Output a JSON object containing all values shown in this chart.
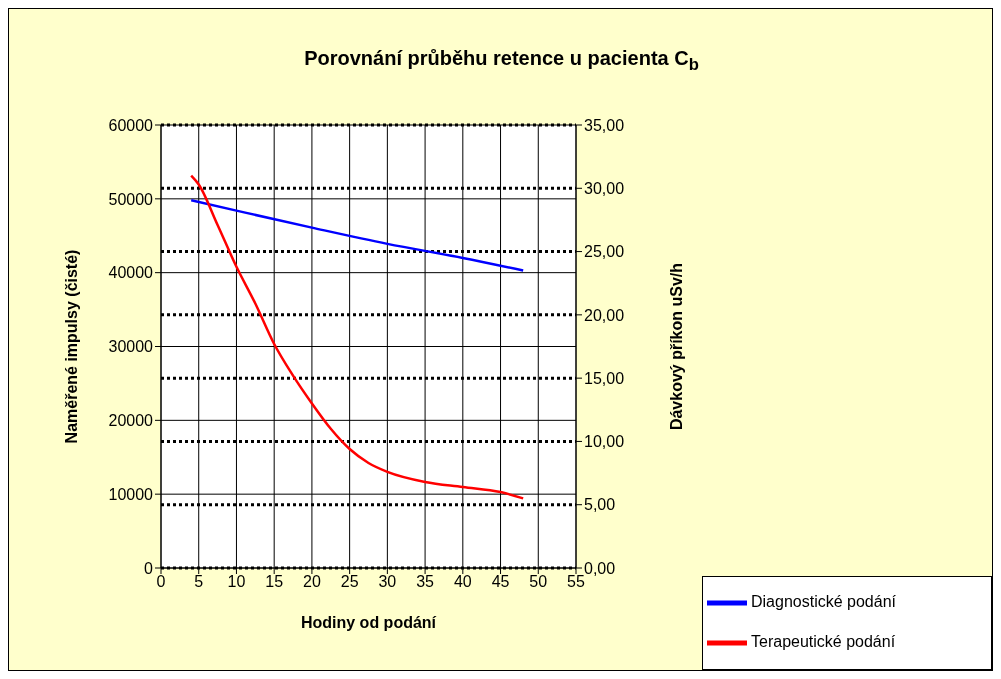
{
  "chart_data": {
    "type": "line",
    "title": "Porovnání průběhu retence u pacienta C$_{b}$",
    "xlabel": "Hodiny od podání",
    "ylabel": "Naměřené impulsy (čisté)",
    "y2label": "Dávkový příkon uSv/h",
    "xlim": [
      0,
      55
    ],
    "xticks": [
      0,
      5,
      10,
      15,
      20,
      25,
      30,
      35,
      40,
      45,
      50,
      55
    ],
    "ylim": [
      0,
      60000
    ],
    "yticks": [
      0,
      10000,
      20000,
      30000,
      40000,
      50000,
      60000
    ],
    "y2lim": [
      0,
      35
    ],
    "y2ticks": [
      {
        "value": 0,
        "label": "0,00"
      },
      {
        "value": 5,
        "label": "5,00"
      },
      {
        "value": 10,
        "label": "10,00"
      },
      {
        "value": 15,
        "label": "15,00"
      },
      {
        "value": 20,
        "label": "20,00"
      },
      {
        "value": 25,
        "label": "25,00"
      },
      {
        "value": 30,
        "label": "30,00"
      },
      {
        "value": 35,
        "label": "35,00"
      }
    ],
    "series": [
      {
        "name": "Diagnostické podání",
        "color": "#0000ff",
        "x": [
          4,
          10,
          20,
          30,
          40,
          48
        ],
        "values": [
          49800,
          48400,
          46100,
          43900,
          42000,
          40300
        ]
      },
      {
        "name": "Terapeutické podání",
        "color": "#ff0000",
        "axis": "y2",
        "x": [
          4,
          5,
          7.5,
          10,
          12.5,
          15,
          17.5,
          20,
          22.5,
          25,
          27.5,
          30,
          35,
          40,
          45,
          48
        ],
        "values": [
          31.0,
          30.3,
          27.1,
          23.8,
          20.9,
          17.7,
          15.2,
          13.0,
          11.0,
          9.4,
          8.3,
          7.6,
          6.8,
          6.4,
          6.0,
          5.5
        ]
      }
    ],
    "grid": true,
    "legend": "bottom right",
    "marker": "none",
    "line_style": "solid"
  }
}
